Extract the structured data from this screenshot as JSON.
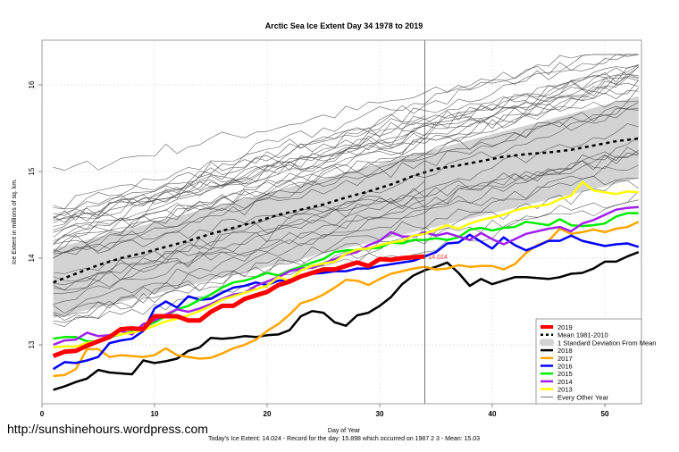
{
  "chart_data": {
    "type": "line",
    "title": "Arctic Sea Ice Extent Day 34 1978 to 2019",
    "xlabel": "Day of Year",
    "ylabel": "Ice Extent in millions of sq. km.",
    "xlim": [
      0,
      54
    ],
    "ylim": [
      12.45,
      16.5
    ],
    "x_ticks": [
      0,
      10,
      20,
      30,
      40,
      50
    ],
    "y_ticks": [
      13,
      14,
      15,
      16
    ],
    "grid": true,
    "current_day": 34,
    "end_label": "14.024",
    "watermark": "http://sunshinehours.wordpress.com",
    "footer": "Today's Ice Extent: 14.024  - Record for the day: 15.898 which occurred on 1987 2 3  - Mean: 15.03",
    "legend_position": "bottom-right",
    "legend": [
      {
        "label": "2019",
        "color": "#ff0000",
        "style": "thick"
      },
      {
        "label": "Mean 1981-2010",
        "color": "#000000",
        "style": "dashed"
      },
      {
        "label": "1 Standard Deviation From Mean",
        "color": "#d3d3d3",
        "style": "band"
      },
      {
        "label": "2018",
        "color": "#000000",
        "style": "solid"
      },
      {
        "label": "2017",
        "color": "#ffa500",
        "style": "solid"
      },
      {
        "label": "2016",
        "color": "#0000ff",
        "style": "solid"
      },
      {
        "label": "2015",
        "color": "#00ee00",
        "style": "solid"
      },
      {
        "label": "2014",
        "color": "#a020f0",
        "style": "solid"
      },
      {
        "label": "2013",
        "color": "#ffff00",
        "style": "solid"
      },
      {
        "label": "Every Other Year",
        "color": "#555555",
        "style": "thin"
      }
    ],
    "band": {
      "x": [
        1,
        53
      ],
      "upper": [
        14.11,
        15.87
      ],
      "lower": [
        13.31,
        14.92
      ]
    },
    "mean": {
      "x": [
        1,
        3,
        5,
        7,
        9,
        11,
        13,
        15,
        17,
        19,
        21,
        23,
        25,
        27,
        29,
        31,
        33,
        35,
        37,
        39,
        41,
        43,
        45,
        47,
        49,
        51,
        53
      ],
      "y": [
        13.72,
        13.82,
        13.92,
        14.0,
        14.06,
        14.13,
        14.2,
        14.28,
        14.35,
        14.42,
        14.5,
        14.56,
        14.62,
        14.7,
        14.77,
        14.85,
        14.95,
        15.03,
        15.07,
        15.12,
        15.17,
        15.2,
        15.22,
        15.25,
        15.3,
        15.35,
        15.38
      ]
    },
    "series": [
      {
        "name": "2019",
        "color": "#ff0000",
        "width": 5,
        "x": [
          1,
          2,
          3,
          4,
          5,
          6,
          7,
          8,
          9,
          10,
          11,
          12,
          13,
          14,
          15,
          16,
          17,
          18,
          19,
          20,
          21,
          22,
          23,
          24,
          25,
          26,
          27,
          28,
          29,
          30,
          31,
          32,
          33,
          34
        ],
        "y": [
          12.87,
          12.92,
          12.93,
          12.99,
          13.04,
          13.09,
          13.18,
          13.19,
          13.18,
          13.33,
          13.33,
          13.33,
          13.28,
          13.28,
          13.38,
          13.45,
          13.45,
          13.53,
          13.57,
          13.61,
          13.69,
          13.73,
          13.79,
          13.83,
          13.87,
          13.87,
          13.91,
          13.95,
          13.91,
          13.99,
          13.98,
          14.0,
          14.01,
          14.02
        ]
      },
      {
        "name": "2018",
        "color": "#000000",
        "width": 2.5,
        "x": [
          1,
          2,
          3,
          4,
          5,
          6,
          7,
          8,
          9,
          10,
          11,
          12,
          13,
          14,
          15,
          16,
          17,
          18,
          19,
          20,
          21,
          22,
          23,
          24,
          25,
          26,
          27,
          28,
          29,
          30,
          31,
          32,
          33,
          34,
          35,
          36,
          37,
          38,
          39,
          40,
          41,
          42,
          43,
          44,
          45,
          46,
          47,
          48,
          49,
          50,
          51,
          52,
          53
        ],
        "y": [
          12.48,
          12.52,
          12.57,
          12.61,
          12.71,
          12.68,
          12.67,
          12.66,
          12.82,
          12.79,
          12.81,
          12.84,
          12.93,
          12.97,
          13.08,
          13.07,
          13.08,
          13.1,
          13.09,
          13.11,
          13.12,
          13.17,
          13.33,
          13.39,
          13.37,
          13.26,
          13.22,
          13.34,
          13.37,
          13.45,
          13.55,
          13.7,
          13.8,
          13.86,
          13.9,
          13.95,
          13.83,
          13.68,
          13.76,
          13.7,
          13.74,
          13.78,
          13.78,
          13.77,
          13.76,
          13.78,
          13.82,
          13.83,
          13.88,
          13.96,
          13.96,
          14.02,
          14.07
        ]
      },
      {
        "name": "2017",
        "color": "#ffa500",
        "width": 2.5,
        "x": [
          1,
          2,
          3,
          4,
          5,
          6,
          7,
          8,
          9,
          10,
          11,
          12,
          13,
          14,
          15,
          16,
          17,
          18,
          19,
          20,
          21,
          22,
          23,
          24,
          25,
          26,
          27,
          28,
          29,
          30,
          31,
          32,
          33,
          34,
          35,
          36,
          37,
          38,
          39,
          40,
          41,
          42,
          43,
          44,
          45,
          46,
          47,
          48,
          49,
          50,
          51,
          52,
          53
        ],
        "y": [
          12.64,
          12.65,
          12.72,
          12.95,
          12.95,
          12.86,
          12.88,
          12.87,
          12.86,
          12.88,
          12.96,
          12.88,
          12.86,
          12.84,
          12.85,
          12.9,
          12.96,
          13.0,
          13.06,
          13.16,
          13.24,
          13.35,
          13.48,
          13.52,
          13.58,
          13.66,
          13.75,
          13.74,
          13.69,
          13.76,
          13.82,
          13.85,
          13.88,
          13.9,
          13.87,
          13.88,
          13.92,
          13.9,
          13.91,
          13.91,
          13.87,
          13.93,
          14.06,
          14.15,
          14.2,
          14.34,
          14.28,
          14.3,
          14.33,
          14.3,
          14.34,
          14.36,
          14.42
        ]
      },
      {
        "name": "2016",
        "color": "#0000ff",
        "width": 2.5,
        "x": [
          1,
          2,
          3,
          4,
          5,
          6,
          7,
          8,
          9,
          10,
          11,
          12,
          13,
          14,
          15,
          16,
          17,
          18,
          19,
          20,
          21,
          22,
          23,
          24,
          25,
          26,
          27,
          28,
          29,
          30,
          31,
          32,
          33,
          34,
          35,
          36,
          37,
          38,
          39,
          40,
          41,
          42,
          43,
          44,
          45,
          46,
          47,
          48,
          49,
          50,
          51,
          52,
          53
        ],
        "y": [
          12.72,
          12.8,
          12.79,
          12.82,
          12.86,
          13.02,
          13.05,
          13.07,
          13.16,
          13.42,
          13.5,
          13.43,
          13.56,
          13.52,
          13.53,
          13.6,
          13.66,
          13.68,
          13.72,
          13.69,
          13.74,
          13.75,
          13.79,
          13.82,
          13.83,
          13.85,
          13.85,
          13.88,
          13.88,
          13.91,
          13.93,
          13.95,
          13.97,
          14.02,
          14.07,
          14.17,
          14.18,
          14.27,
          14.19,
          14.11,
          14.24,
          14.15,
          14.09,
          14.14,
          14.2,
          14.2,
          14.26,
          14.2,
          14.17,
          14.14,
          14.16,
          14.17,
          14.13
        ]
      },
      {
        "name": "2015",
        "color": "#00ee00",
        "width": 2.5,
        "x": [
          1,
          2,
          3,
          4,
          5,
          6,
          7,
          8,
          9,
          10,
          11,
          12,
          13,
          14,
          15,
          16,
          17,
          18,
          19,
          20,
          21,
          22,
          23,
          24,
          25,
          26,
          27,
          28,
          29,
          30,
          31,
          32,
          33,
          34,
          35,
          36,
          37,
          38,
          39,
          40,
          41,
          42,
          43,
          44,
          45,
          46,
          47,
          48,
          49,
          50,
          51,
          52,
          53
        ],
        "y": [
          13.07,
          13.09,
          13.09,
          13.04,
          13.04,
          13.09,
          13.12,
          13.15,
          13.2,
          13.26,
          13.33,
          13.41,
          13.45,
          13.52,
          13.58,
          13.66,
          13.72,
          13.74,
          13.78,
          13.83,
          13.8,
          13.86,
          13.9,
          13.95,
          13.99,
          14.07,
          14.09,
          14.09,
          14.11,
          14.12,
          14.18,
          14.17,
          14.21,
          14.21,
          14.23,
          14.21,
          14.24,
          14.33,
          14.35,
          14.32,
          14.35,
          14.36,
          14.42,
          14.4,
          14.38,
          14.45,
          14.38,
          14.37,
          14.38,
          14.4,
          14.48,
          14.52,
          14.52
        ]
      },
      {
        "name": "2014",
        "color": "#a020f0",
        "width": 2.5,
        "x": [
          1,
          2,
          3,
          4,
          5,
          6,
          7,
          8,
          9,
          10,
          11,
          12,
          13,
          14,
          15,
          16,
          17,
          18,
          19,
          20,
          21,
          22,
          23,
          24,
          25,
          26,
          27,
          28,
          29,
          30,
          31,
          32,
          33,
          34,
          35,
          36,
          37,
          38,
          39,
          40,
          41,
          42,
          43,
          44,
          45,
          46,
          47,
          48,
          49,
          50,
          51,
          52,
          53
        ],
        "y": [
          13.0,
          13.05,
          13.06,
          13.14,
          13.1,
          13.11,
          13.16,
          13.12,
          13.24,
          13.28,
          13.35,
          13.41,
          13.38,
          13.42,
          13.47,
          13.53,
          13.58,
          13.6,
          13.68,
          13.73,
          13.78,
          13.85,
          13.88,
          13.89,
          13.94,
          13.99,
          14.04,
          14.07,
          14.15,
          14.2,
          14.3,
          14.25,
          14.25,
          14.3,
          14.26,
          14.29,
          14.25,
          14.21,
          14.29,
          14.22,
          14.16,
          14.22,
          14.28,
          14.31,
          14.34,
          14.36,
          14.31,
          14.4,
          14.44,
          14.5,
          14.56,
          14.58,
          14.59
        ]
      },
      {
        "name": "2013",
        "color": "#ffff00",
        "width": 2.5,
        "x": [
          1,
          2,
          3,
          4,
          5,
          6,
          7,
          8,
          9,
          10,
          11,
          12,
          13,
          14,
          15,
          16,
          17,
          18,
          19,
          20,
          21,
          22,
          23,
          24,
          25,
          26,
          27,
          28,
          29,
          30,
          31,
          32,
          33,
          34,
          35,
          36,
          37,
          38,
          39,
          40,
          41,
          42,
          43,
          44,
          45,
          46,
          47,
          48,
          49,
          50,
          51,
          52,
          53
        ],
        "y": [
          12.97,
          12.98,
          12.98,
          13.02,
          13.05,
          13.1,
          13.12,
          13.14,
          13.17,
          13.22,
          13.27,
          13.3,
          13.34,
          13.39,
          13.45,
          13.52,
          13.56,
          13.6,
          13.64,
          13.68,
          13.78,
          13.74,
          13.86,
          13.91,
          13.94,
          13.96,
          14.05,
          14.1,
          14.11,
          14.15,
          14.18,
          14.2,
          14.26,
          14.28,
          14.33,
          14.38,
          14.34,
          14.4,
          14.44,
          14.47,
          14.5,
          14.55,
          14.58,
          14.6,
          14.62,
          14.68,
          14.72,
          14.88,
          14.78,
          14.76,
          14.74,
          14.77,
          14.76
        ]
      }
    ],
    "every_other_year_note": "approximately 35 thin grey lines spanning roughly 13.2-16.2, mostly within and above the standard deviation band"
  }
}
